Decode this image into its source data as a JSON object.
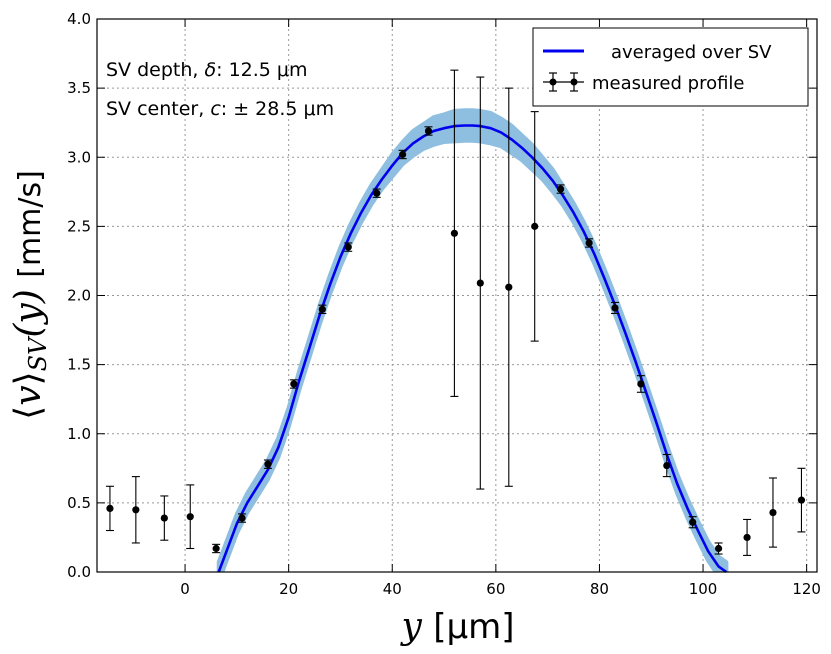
{
  "chart_data": {
    "type": "scatter",
    "title": "",
    "xlabel_italic": "y",
    "xlabel_unit": "[μm]",
    "ylabel_prefix": "⟨",
    "ylabel_var": "v",
    "ylabel_sub": "SV",
    "ylabel_arg": "(y)",
    "ylabel_close": "⟩",
    "ylabel_unit": "[mm/s]",
    "xlim": [
      -17,
      122
    ],
    "ylim": [
      0.0,
      4.0
    ],
    "xticks": [
      0,
      20,
      40,
      60,
      80,
      100,
      120
    ],
    "xtick_labels": [
      "0",
      "20",
      "40",
      "60",
      "80",
      "100",
      "120"
    ],
    "yticks": [
      0.0,
      0.5,
      1.0,
      1.5,
      2.0,
      2.5,
      3.0,
      3.5,
      4.0
    ],
    "ytick_labels": [
      "0.0",
      "0.5",
      "1.0",
      "1.5",
      "2.0",
      "2.5",
      "3.0",
      "3.5",
      "4.0"
    ],
    "grid": true,
    "legend_position": "top-right",
    "annotations": {
      "depth_label": "SV depth,",
      "depth_symbol": "δ",
      "depth_value": ": 12.5 μm",
      "center_label": "SV center,",
      "center_symbol": "c",
      "center_value": ": ± 28.5 μm"
    },
    "series": [
      {
        "name": "averaged over SV",
        "kind": "line",
        "color": "#0000ee",
        "band_color": "#8fbfe0",
        "x": [
          6.5,
          8,
          10,
          12,
          14,
          16,
          18,
          20,
          22,
          24,
          26,
          28,
          30,
          32,
          34,
          36,
          38,
          40,
          42,
          44,
          46,
          48,
          50,
          52,
          54,
          55.5,
          57,
          59,
          61,
          63,
          65,
          67,
          69,
          71,
          73,
          75,
          77,
          79,
          81,
          83,
          85,
          87,
          89,
          91,
          93,
          95,
          97,
          99,
          101,
          103,
          104.5
        ],
        "y": [
          0.0,
          0.15,
          0.35,
          0.5,
          0.62,
          0.74,
          0.9,
          1.12,
          1.38,
          1.62,
          1.86,
          2.08,
          2.28,
          2.45,
          2.6,
          2.73,
          2.84,
          2.94,
          3.03,
          3.1,
          3.15,
          3.19,
          3.21,
          3.225,
          3.23,
          3.23,
          3.225,
          3.21,
          3.18,
          3.13,
          3.07,
          3.0,
          2.92,
          2.83,
          2.72,
          2.6,
          2.46,
          2.3,
          2.12,
          1.93,
          1.73,
          1.52,
          1.3,
          1.08,
          0.85,
          0.64,
          0.46,
          0.3,
          0.15,
          0.04,
          0.0
        ],
        "band_halfwidth": [
          0.07,
          0.07,
          0.07,
          0.07,
          0.07,
          0.07,
          0.07,
          0.07,
          0.07,
          0.07,
          0.07,
          0.07,
          0.07,
          0.07,
          0.07,
          0.07,
          0.07,
          0.08,
          0.08,
          0.09,
          0.09,
          0.1,
          0.1,
          0.11,
          0.11,
          0.11,
          0.11,
          0.11,
          0.1,
          0.1,
          0.09,
          0.09,
          0.08,
          0.08,
          0.07,
          0.07,
          0.07,
          0.07,
          0.07,
          0.07,
          0.07,
          0.07,
          0.07,
          0.07,
          0.07,
          0.07,
          0.07,
          0.07,
          0.07,
          0.07,
          0.07
        ]
      },
      {
        "name": "measured profile",
        "kind": "errorbar",
        "color": "#000000",
        "x": [
          -14.5,
          -9.5,
          -4,
          1,
          6,
          11,
          16,
          21,
          26.5,
          31.5,
          37,
          42,
          47,
          52,
          57,
          62.5,
          67.5,
          72.5,
          78,
          83,
          88,
          93,
          98,
          103,
          108.5,
          113.5,
          119
        ],
        "y": [
          0.46,
          0.45,
          0.39,
          0.4,
          0.17,
          0.39,
          0.78,
          1.36,
          1.9,
          2.35,
          2.74,
          3.02,
          3.19,
          2.45,
          2.09,
          2.06,
          2.5,
          2.77,
          2.38,
          1.91,
          1.36,
          0.77,
          0.36,
          0.17,
          0.25,
          0.43,
          0.52
        ],
        "err": [
          0.16,
          0.24,
          0.16,
          0.23,
          0.03,
          0.03,
          0.03,
          0.03,
          0.03,
          0.03,
          0.03,
          0.03,
          0.03,
          1.18,
          1.49,
          1.44,
          0.83,
          0.03,
          0.03,
          0.04,
          0.06,
          0.08,
          0.04,
          0.04,
          0.13,
          0.25,
          0.23
        ]
      }
    ]
  }
}
